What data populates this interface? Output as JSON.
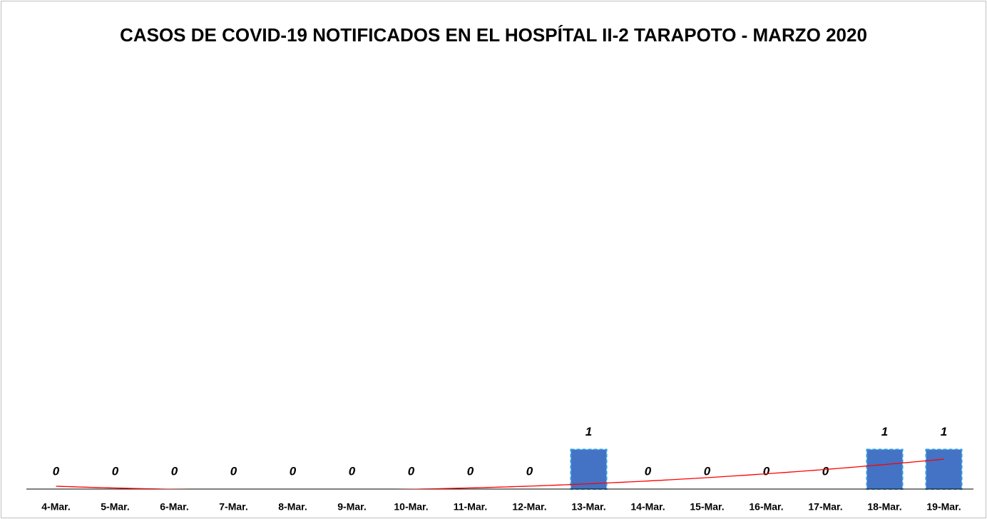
{
  "chart_data": {
    "type": "bar",
    "title": "CASOS DE COVID-19 NOTIFICADOS EN EL HOSPÍTAL II-2 TARAPOTO - MARZO 2020",
    "categories": [
      "4-Mar.",
      "5-Mar.",
      "6-Mar.",
      "7-Mar.",
      "8-Mar.",
      "9-Mar.",
      "10-Mar.",
      "11-Mar.",
      "12-Mar.",
      "13-Mar.",
      "14-Mar.",
      "15-Mar.",
      "16-Mar.",
      "17-Mar.",
      "18-Mar.",
      "19-Mar."
    ],
    "values": [
      0,
      0,
      0,
      0,
      0,
      0,
      0,
      0,
      0,
      1,
      0,
      0,
      0,
      0,
      1,
      1
    ],
    "color": "#4472c4",
    "ylim": [
      0,
      10
    ],
    "trendline": {
      "type": "polynomial",
      "order": 2,
      "color": "#ff0000"
    }
  }
}
